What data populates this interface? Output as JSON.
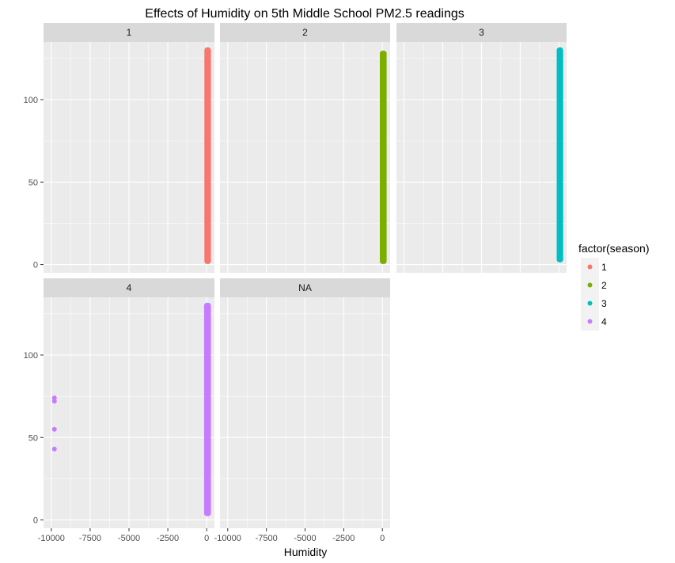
{
  "chart_data": {
    "type": "scatter",
    "title": "Effects of Humidity on 5th Middle School PM2.5 readings",
    "xlabel": "Humidity",
    "ylabel": "",
    "xlim": [
      -10500,
      500
    ],
    "ylim": [
      -5,
      135
    ],
    "x_ticks": [
      -10000,
      -7500,
      -5000,
      -2500,
      0
    ],
    "x_tick_labels": [
      "-10000",
      "-7500",
      "-5000",
      "-2500",
      "0"
    ],
    "x_tick_labels_narrow": [
      "-10000",
      "-7500",
      "-5000",
      "-2500",
      "0"
    ],
    "y_ticks": [
      0,
      50,
      100
    ],
    "y_tick_labels": [
      "0",
      "50",
      "100"
    ],
    "grid": true,
    "legend": {
      "title": "factor(season)",
      "placement": "right",
      "entries": [
        {
          "label": "1",
          "color": "#F8766D"
        },
        {
          "label": "2",
          "color": "#7CAE00"
        },
        {
          "label": "3",
          "color": "#00BFC4"
        },
        {
          "label": "4",
          "color": "#C77CFF"
        }
      ]
    },
    "facets": [
      {
        "label": "1",
        "color": "#F8766D",
        "band": {
          "x_min": 30,
          "x_max": 95,
          "y_min": 2,
          "y_max": 130
        },
        "outliers": []
      },
      {
        "label": "2",
        "color": "#7CAE00",
        "band": {
          "x_min": 15,
          "x_max": 95,
          "y_min": 2,
          "y_max": 128
        },
        "outliers": []
      },
      {
        "label": "3",
        "color": "#00BFC4",
        "band": {
          "x_min": 40,
          "x_max": 98,
          "y_min": 3,
          "y_max": 130
        },
        "outliers": []
      },
      {
        "label": "4",
        "color": "#C77CFF",
        "band": {
          "x_min": 10,
          "x_max": 98,
          "y_min": 4,
          "y_max": 130
        },
        "outliers": [
          {
            "x": -9800,
            "y": 74
          },
          {
            "x": -9800,
            "y": 72
          },
          {
            "x": -9800,
            "y": 55
          },
          {
            "x": -9800,
            "y": 43
          }
        ]
      },
      {
        "label": "NA",
        "color": "#7F7F7F",
        "band": null,
        "outliers": []
      }
    ]
  }
}
